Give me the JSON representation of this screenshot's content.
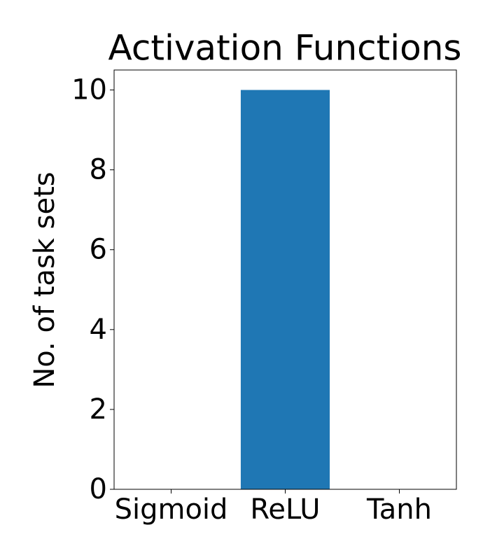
{
  "chart_data": {
    "type": "bar",
    "title": "Activation Functions",
    "ylabel": "No. of task sets",
    "categories": [
      "Sigmoid",
      "ReLU",
      "Tanh"
    ],
    "values": [
      0,
      10,
      0
    ],
    "color": "#1f77b4",
    "ylim": [
      0,
      10.5
    ],
    "yticks": [
      0,
      2,
      4,
      6,
      8,
      10
    ]
  }
}
